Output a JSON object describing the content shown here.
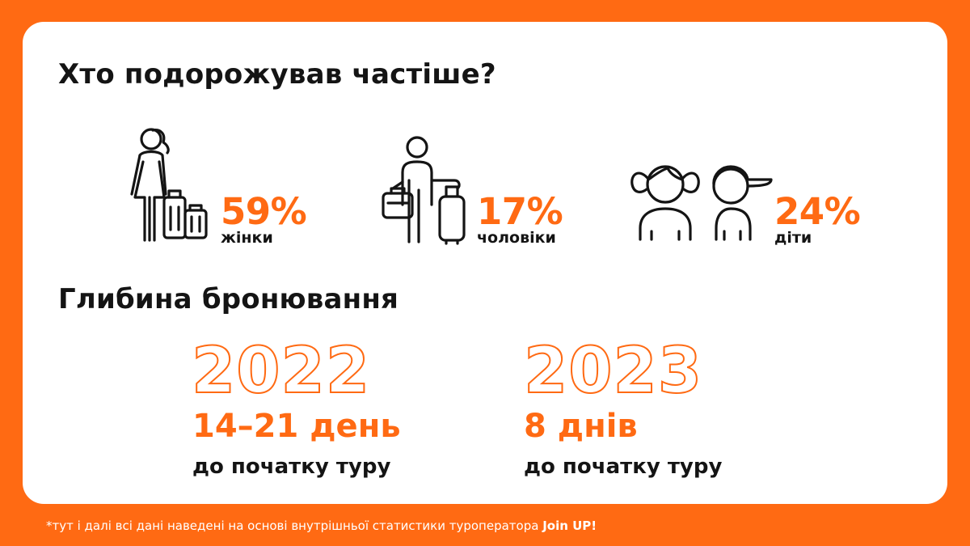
{
  "colors": {
    "accent": "#FF6A13",
    "text": "#141414",
    "card": "#FFFFFF"
  },
  "section_travelers": {
    "title": "Хто подорожував частіше?",
    "items": [
      {
        "icon": "woman-with-luggage-icon",
        "percent": "59%",
        "label": "жінки"
      },
      {
        "icon": "man-with-luggage-icon",
        "percent": "17%",
        "label": "чоловіки"
      },
      {
        "icon": "children-icon",
        "percent": "24%",
        "label": "діти"
      }
    ]
  },
  "section_booking": {
    "title": "Глибина бронювання",
    "years": [
      {
        "year": "2022",
        "range": "14–21 день",
        "note": "до початку туру"
      },
      {
        "year": "2023",
        "range": "8 днів",
        "note": "до початку туру"
      }
    ]
  },
  "footnote": {
    "text": "*тут і далі всі дані наведені на основі внутрішньої статистики туроператора ",
    "brand": "Join UP!"
  }
}
